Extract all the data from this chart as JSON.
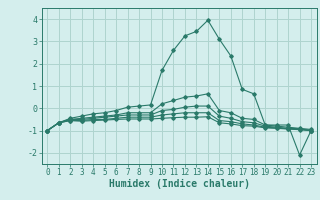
{
  "xlabel": "Humidex (Indice chaleur)",
  "ylabel": "",
  "background_color": "#d4eeed",
  "grid_color": "#aed4cf",
  "line_color": "#2a7a6a",
  "x_values": [
    0,
    1,
    2,
    3,
    4,
    5,
    6,
    7,
    8,
    9,
    10,
    11,
    12,
    13,
    14,
    15,
    16,
    17,
    18,
    19,
    20,
    21,
    22,
    23
  ],
  "series": [
    [
      -1.0,
      -0.65,
      -0.45,
      -0.35,
      -0.25,
      -0.2,
      -0.1,
      0.05,
      0.1,
      0.15,
      1.7,
      2.6,
      3.25,
      3.45,
      3.95,
      3.1,
      2.35,
      0.85,
      0.65,
      -0.75,
      -0.75,
      -0.75,
      -2.1,
      -1.0
    ],
    [
      -1.0,
      -0.65,
      -0.5,
      -0.45,
      -0.4,
      -0.35,
      -0.3,
      -0.2,
      -0.2,
      -0.2,
      0.2,
      0.35,
      0.5,
      0.55,
      0.65,
      -0.1,
      -0.2,
      -0.45,
      -0.5,
      -0.75,
      -0.8,
      -0.85,
      -0.9,
      -0.95
    ],
    [
      -1.0,
      -0.65,
      -0.5,
      -0.5,
      -0.45,
      -0.4,
      -0.35,
      -0.3,
      -0.3,
      -0.3,
      -0.1,
      -0.05,
      0.05,
      0.1,
      0.1,
      -0.35,
      -0.45,
      -0.6,
      -0.65,
      -0.8,
      -0.85,
      -0.9,
      -0.92,
      -1.0
    ],
    [
      -1.0,
      -0.65,
      -0.55,
      -0.55,
      -0.5,
      -0.5,
      -0.45,
      -0.4,
      -0.4,
      -0.4,
      -0.3,
      -0.25,
      -0.2,
      -0.2,
      -0.2,
      -0.55,
      -0.6,
      -0.7,
      -0.75,
      -0.85,
      -0.88,
      -0.92,
      -0.95,
      -1.0
    ],
    [
      -1.0,
      -0.65,
      -0.55,
      -0.58,
      -0.55,
      -0.53,
      -0.5,
      -0.48,
      -0.48,
      -0.48,
      -0.45,
      -0.42,
      -0.4,
      -0.4,
      -0.38,
      -0.65,
      -0.7,
      -0.78,
      -0.8,
      -0.88,
      -0.9,
      -0.93,
      -0.96,
      -1.0
    ]
  ],
  "xlim": [
    -0.5,
    23.5
  ],
  "ylim": [
    -2.5,
    4.5
  ],
  "yticks": [
    -2,
    -1,
    0,
    1,
    2,
    3,
    4
  ],
  "xtick_fontsize": 5.5,
  "ytick_fontsize": 6.0,
  "xlabel_fontsize": 7.0
}
